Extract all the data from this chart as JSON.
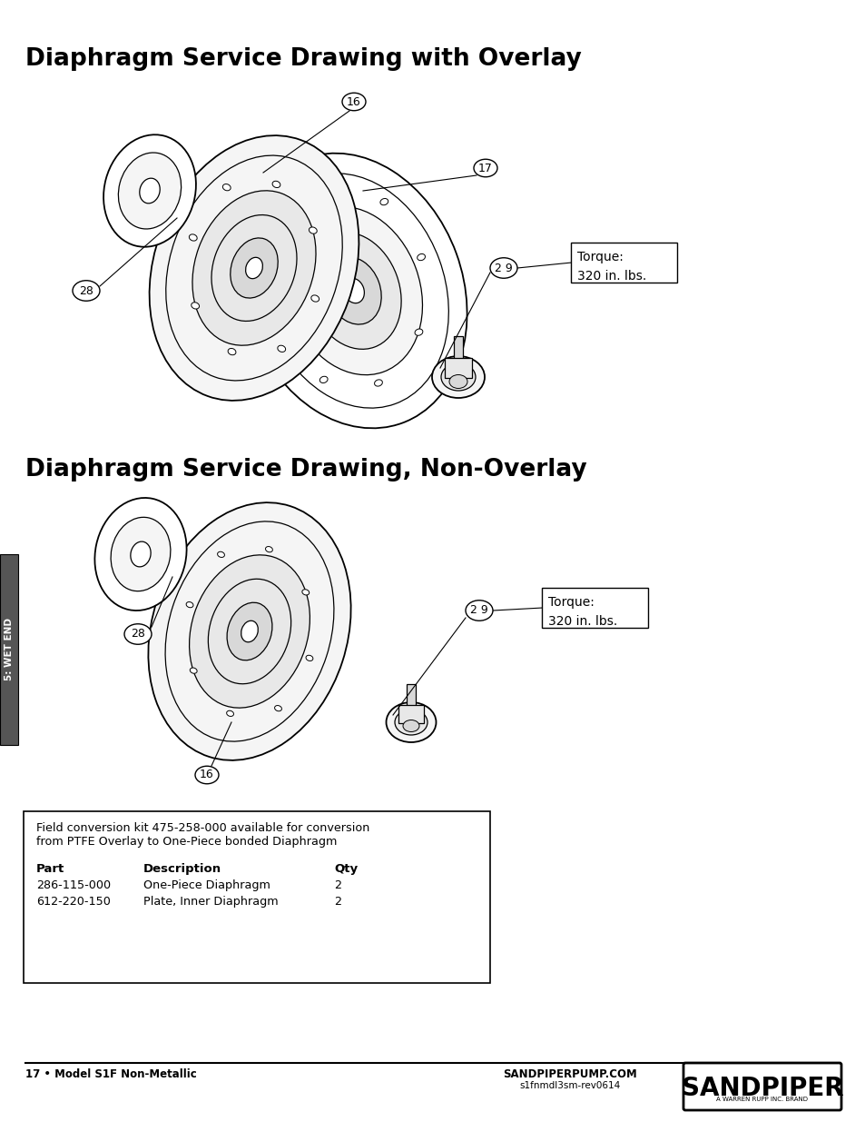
{
  "title1": "Diaphragm Service Drawing with Overlay",
  "title2": "Diaphragm Service Drawing, Non-Overlay",
  "bg_color": "#ffffff",
  "title_fontsize": 19,
  "footer_left": "17 • Model S1F Non-Metallic",
  "footer_center": "SANDPIPERPUMP.COM",
  "footer_sub": "s1fnmdl3sm-rev0614",
  "footer_brand": "SANDPIPER",
  "footer_sub2": "A WARREN RUPP INC. BRAND",
  "side_label": "5: WET END",
  "torque_text": "Torque:\n320 in. lbs.",
  "box_text_line1": "Field conversion kit 475-258-000 available for conversion",
  "box_text_line2": "from PTFE Overlay to One-Piece bonded Diaphragm",
  "col_headers": [
    "Part",
    "Description",
    "Qty"
  ],
  "table_rows": [
    [
      "286-115-000",
      "One-Piece Diaphragm",
      "2"
    ],
    [
      "612-220-150",
      "Plate, Inner Diaphragm",
      "2"
    ]
  ]
}
